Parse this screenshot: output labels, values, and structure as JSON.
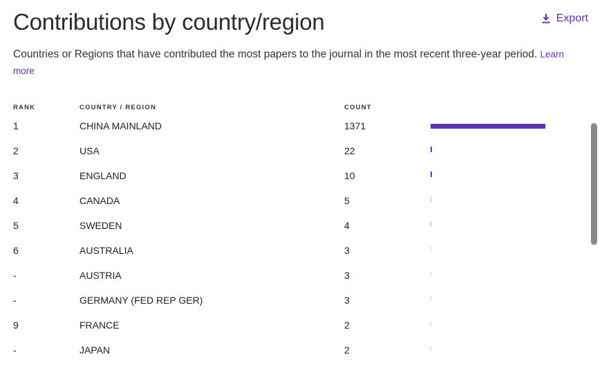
{
  "header": {
    "title": "Contributions by country/region",
    "export_label": "Export",
    "export_icon": "download-icon"
  },
  "description": {
    "text": "Countries or Regions that have contributed the most papers to the journal in the most recent three-year period.",
    "link_label": "Learn more"
  },
  "table": {
    "columns": {
      "rank": "RANK",
      "country": "COUNTRY / REGION",
      "count": "COUNT"
    },
    "max_count": 1371,
    "bar_color": "#5a35b8",
    "rows": [
      {
        "rank": "1",
        "country": "CHINA MAINLAND",
        "count": "1371",
        "value": 1371
      },
      {
        "rank": "2",
        "country": "USA",
        "count": "22",
        "value": 22
      },
      {
        "rank": "3",
        "country": "ENGLAND",
        "count": "10",
        "value": 10
      },
      {
        "rank": "4",
        "country": "CANADA",
        "count": "5",
        "value": 5
      },
      {
        "rank": "5",
        "country": "SWEDEN",
        "count": "4",
        "value": 4
      },
      {
        "rank": "6",
        "country": "AUSTRALIA",
        "count": "3",
        "value": 3
      },
      {
        "rank": "-",
        "country": "AUSTRIA",
        "count": "3",
        "value": 3
      },
      {
        "rank": "-",
        "country": "GERMANY (FED REP GER)",
        "count": "3",
        "value": 3
      },
      {
        "rank": "9",
        "country": "FRANCE",
        "count": "2",
        "value": 2
      },
      {
        "rank": "-",
        "country": "JAPAN",
        "count": "2",
        "value": 2
      }
    ]
  }
}
